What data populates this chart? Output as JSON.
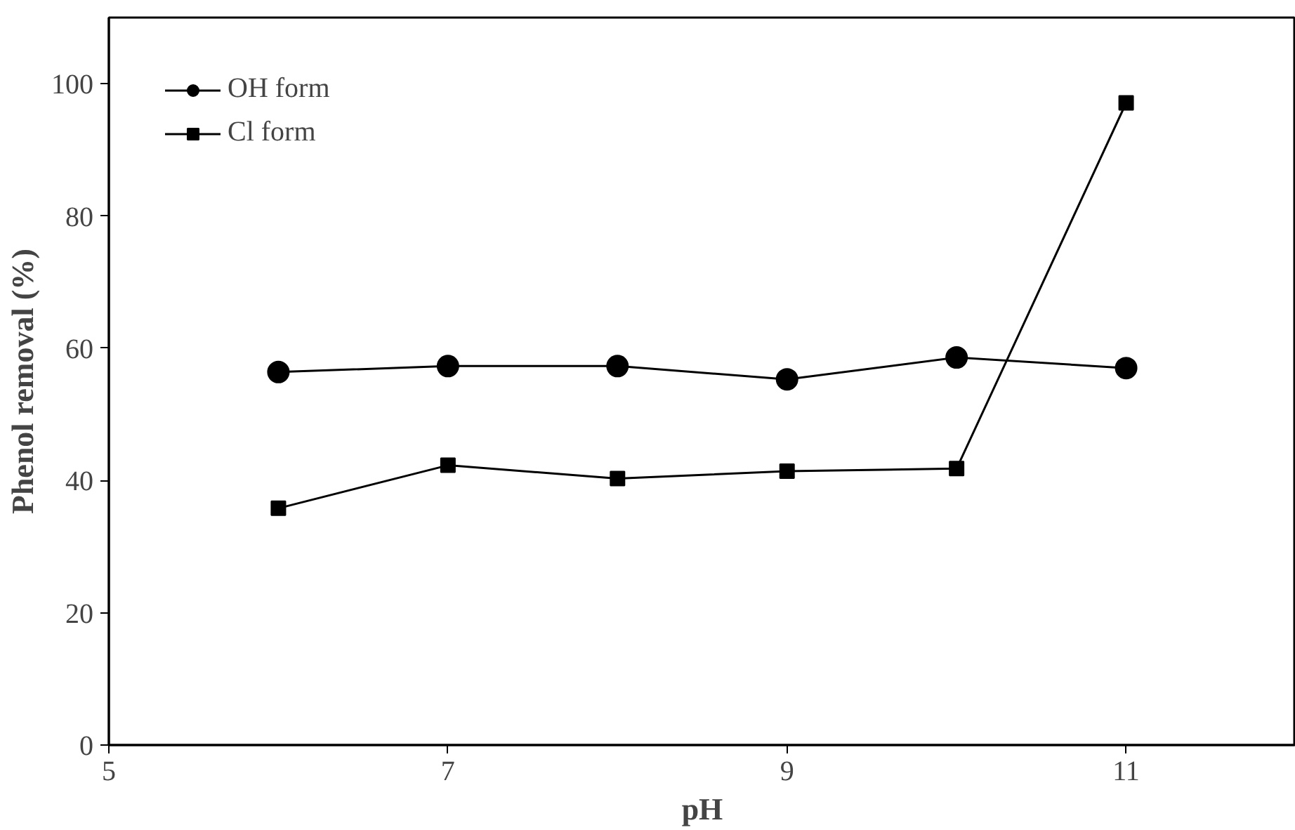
{
  "chart_data": {
    "type": "line",
    "xlabel": "pH",
    "ylabel": "Phenol removal (%)",
    "x": [
      6,
      7,
      8,
      9,
      10,
      11
    ],
    "series": [
      {
        "name": "OH form",
        "color": "#000000",
        "marker": "circle",
        "values": [
          56.4,
          57.3,
          57.3,
          55.3,
          58.6,
          57.0
        ]
      },
      {
        "name": "Cl form",
        "color": "#000000",
        "marker": "square",
        "values": [
          35.8,
          42.3,
          40.3,
          41.4,
          41.8,
          97.1
        ]
      }
    ],
    "xlim": [
      5,
      12
    ],
    "ylim": [
      0,
      110
    ],
    "xticks": [
      5,
      7,
      9,
      11
    ],
    "yticks": [
      0,
      20,
      40,
      60,
      80,
      100
    ],
    "grid": false,
    "legend": "top left",
    "line_style": "solid"
  }
}
